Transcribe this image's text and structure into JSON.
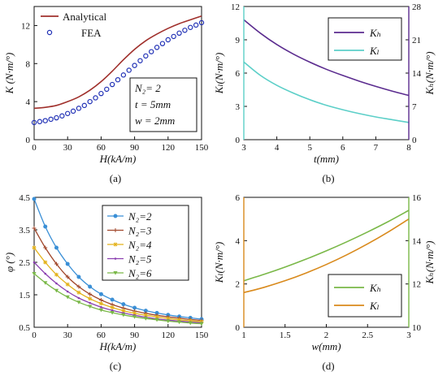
{
  "captions": [
    "(a)",
    "(b)",
    "(c)",
    "(d)"
  ],
  "chart_data": [
    {
      "panel": "a",
      "type": "line",
      "caption": "(a)",
      "xlabel": "H(kA/m)",
      "ylabel": "K (N·m/°)",
      "xlim": [
        0,
        150
      ],
      "ylim": [
        0,
        14
      ],
      "xticks": [
        0,
        30,
        60,
        90,
        120,
        150
      ],
      "yticks": [
        0,
        4,
        8,
        12
      ],
      "legend": "top-left",
      "annotation": [
        "N₂= 2",
        "t = 5mm",
        "w = 2mm"
      ],
      "series": [
        {
          "name": "Analytical",
          "style": "line",
          "color": "#a0302c",
          "x": [
            0,
            10,
            20,
            30,
            40,
            50,
            60,
            70,
            80,
            90,
            100,
            110,
            120,
            130,
            140,
            150
          ],
          "y": [
            3.3,
            3.4,
            3.6,
            4.0,
            4.5,
            5.2,
            6.1,
            7.2,
            8.4,
            9.5,
            10.4,
            11.1,
            11.7,
            12.2,
            12.6,
            13.0
          ]
        },
        {
          "name": "FEA",
          "style": "markers",
          "color": "#1f2fb5",
          "x": [
            0,
            5,
            10,
            15,
            20,
            25,
            30,
            35,
            40,
            45,
            50,
            55,
            60,
            65,
            70,
            75,
            80,
            85,
            90,
            95,
            100,
            105,
            110,
            115,
            120,
            125,
            130,
            135,
            140,
            145,
            150
          ],
          "y": [
            1.8,
            1.9,
            2.0,
            2.15,
            2.3,
            2.5,
            2.75,
            3.0,
            3.3,
            3.6,
            4.0,
            4.4,
            4.85,
            5.3,
            5.8,
            6.3,
            6.8,
            7.3,
            7.8,
            8.3,
            8.8,
            9.25,
            9.7,
            10.1,
            10.5,
            10.85,
            11.2,
            11.5,
            11.8,
            12.05,
            12.3
          ]
        }
      ]
    },
    {
      "panel": "b",
      "type": "line",
      "caption": "(b)",
      "xlabel": "t(mm)",
      "ylabel": "Kₗ(N·m/°)",
      "ylabel_right": "Kₕ(N·m/°)",
      "xlim": [
        3,
        8
      ],
      "ylim": [
        0,
        12
      ],
      "ylim_right": [
        0,
        28
      ],
      "xticks": [
        3,
        4,
        5,
        6,
        7,
        8
      ],
      "yticks": [
        0,
        3,
        6,
        9,
        12
      ],
      "yticks_right": [
        0,
        7,
        14,
        21,
        28
      ],
      "legend": "top-right",
      "series": [
        {
          "name": "Kₕ",
          "axis": "right",
          "color": "#5b2c8f",
          "x": [
            3,
            3.5,
            4,
            4.5,
            5,
            5.5,
            6,
            6.5,
            7,
            7.5,
            8
          ],
          "y": [
            25.2,
            22.4,
            20.0,
            18.0,
            16.3,
            14.8,
            13.5,
            12.3,
            11.2,
            10.2,
            9.3
          ]
        },
        {
          "name": "Kₗ",
          "axis": "left",
          "color": "#5ccfc8",
          "x": [
            3,
            3.5,
            4,
            4.5,
            5,
            5.5,
            6,
            6.5,
            7,
            7.5,
            8
          ],
          "y": [
            7.0,
            5.8,
            4.9,
            4.2,
            3.6,
            3.1,
            2.7,
            2.35,
            2.05,
            1.8,
            1.55
          ]
        }
      ]
    },
    {
      "panel": "c",
      "type": "line",
      "caption": "(c)",
      "xlabel": "H(kA/m)",
      "ylabel": "φ (°)",
      "xlim": [
        0,
        150
      ],
      "ylim": [
        0.5,
        4.5
      ],
      "xticks": [
        0,
        30,
        60,
        90,
        120,
        150
      ],
      "yticks": [
        0.5,
        1.5,
        2.5,
        3.5,
        4.5
      ],
      "legend": "top-right",
      "series": [
        {
          "name": "N₂=2",
          "color": "#3a8fd6",
          "marker": "circle",
          "x": [
            0,
            10,
            20,
            30,
            40,
            50,
            60,
            70,
            80,
            90,
            100,
            110,
            120,
            130,
            140,
            150
          ],
          "y": [
            4.45,
            3.6,
            2.95,
            2.45,
            2.05,
            1.75,
            1.52,
            1.35,
            1.21,
            1.1,
            1.01,
            0.94,
            0.88,
            0.83,
            0.79,
            0.75
          ]
        },
        {
          "name": "N₂=3",
          "color": "#a0462a",
          "marker": "plus",
          "x": [
            0,
            10,
            20,
            30,
            40,
            50,
            60,
            70,
            80,
            90,
            100,
            110,
            120,
            130,
            140,
            150
          ],
          "y": [
            3.55,
            2.95,
            2.45,
            2.05,
            1.75,
            1.52,
            1.34,
            1.2,
            1.09,
            1.0,
            0.93,
            0.87,
            0.82,
            0.78,
            0.74,
            0.71
          ]
        },
        {
          "name": "N₂=4",
          "color": "#e3b21a",
          "marker": "star",
          "x": [
            0,
            10,
            20,
            30,
            40,
            50,
            60,
            70,
            80,
            90,
            100,
            110,
            120,
            130,
            140,
            150
          ],
          "y": [
            2.95,
            2.5,
            2.12,
            1.82,
            1.57,
            1.38,
            1.23,
            1.11,
            1.01,
            0.93,
            0.87,
            0.82,
            0.77,
            0.73,
            0.7,
            0.67
          ]
        },
        {
          "name": "N₂=5",
          "color": "#8a3fb0",
          "marker": "dot",
          "x": [
            0,
            10,
            20,
            30,
            40,
            50,
            60,
            70,
            80,
            90,
            100,
            110,
            120,
            130,
            140,
            150
          ],
          "y": [
            2.5,
            2.15,
            1.85,
            1.6,
            1.4,
            1.25,
            1.12,
            1.02,
            0.94,
            0.87,
            0.81,
            0.76,
            0.72,
            0.69,
            0.66,
            0.64
          ]
        },
        {
          "name": "N₂=6",
          "color": "#7ab848",
          "marker": "triangle",
          "x": [
            0,
            10,
            20,
            30,
            40,
            50,
            60,
            70,
            80,
            90,
            100,
            110,
            120,
            130,
            140,
            150
          ],
          "y": [
            2.15,
            1.87,
            1.63,
            1.43,
            1.27,
            1.14,
            1.03,
            0.95,
            0.88,
            0.82,
            0.77,
            0.73,
            0.69,
            0.66,
            0.63,
            0.61
          ]
        }
      ]
    },
    {
      "panel": "d",
      "type": "line",
      "caption": "(d)",
      "xlabel": "w(mm)",
      "ylabel": "Kₗ(N·m/°)",
      "ylabel_right": "Kₕ(N·m/°)",
      "xlim": [
        1,
        3
      ],
      "ylim": [
        0,
        6
      ],
      "ylim_right": [
        10,
        16
      ],
      "xticks": [
        1,
        1.5,
        2,
        2.5,
        3
      ],
      "xtick_labels": [
        "1",
        "1.5",
        "2",
        "2.5",
        "3"
      ],
      "yticks": [
        0,
        2,
        4,
        6
      ],
      "yticks_right": [
        10,
        12,
        14,
        16
      ],
      "legend": "bottom-right",
      "series": [
        {
          "name": "Kₕ",
          "axis": "right",
          "color": "#7ab848",
          "x": [
            1,
            1.25,
            1.5,
            1.75,
            2,
            2.25,
            2.5,
            2.75,
            3
          ],
          "y": [
            12.15,
            12.45,
            12.78,
            13.14,
            13.53,
            13.95,
            14.4,
            14.88,
            15.4
          ]
        },
        {
          "name": "Kₗ",
          "axis": "left",
          "color": "#d98a1c",
          "x": [
            1,
            1.25,
            1.5,
            1.75,
            2,
            2.25,
            2.5,
            2.75,
            3
          ],
          "y": [
            1.6,
            1.85,
            2.15,
            2.5,
            2.9,
            3.35,
            3.85,
            4.4,
            5.0
          ]
        }
      ]
    }
  ]
}
